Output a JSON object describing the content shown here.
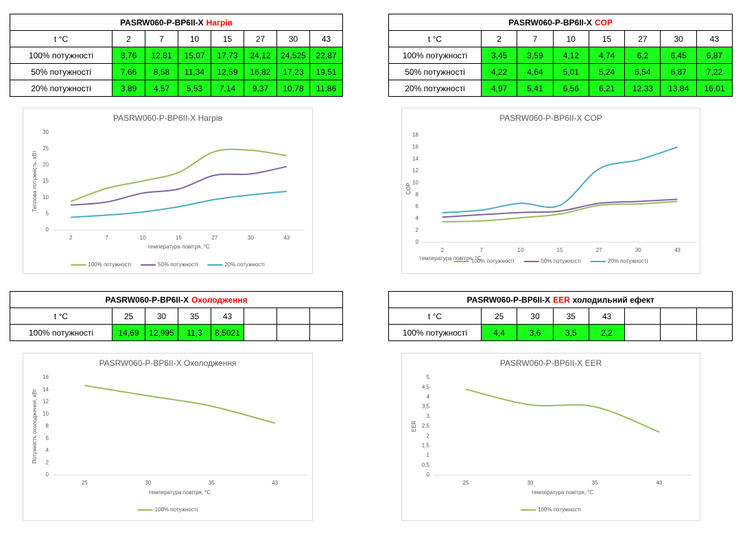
{
  "tables": [
    {
      "title": "PASRW060-P-BP6II-X",
      "title_highlight": "Нагрів",
      "header_label": "t °C",
      "headers": [
        "2",
        "7",
        "10",
        "15",
        "27",
        "30",
        "43"
      ],
      "rows": [
        {
          "label": "100% потужності",
          "values": [
            "8,76",
            "12,81",
            "15,07",
            "17,73",
            "24,12",
            "24,525",
            "22,87"
          ]
        },
        {
          "label": "50% потужності",
          "values": [
            "7,66",
            "8,58",
            "11,34",
            "12,59",
            "16,82",
            "17,23",
            "19,51"
          ]
        },
        {
          "label": "20% потужності",
          "values": [
            "3,89",
            "4,57",
            "5,53",
            "7,14",
            "9,37",
            "10,78",
            "11,86"
          ]
        }
      ]
    },
    {
      "title": "PASRW060-P-BP6II-X",
      "title_highlight": "COP",
      "header_label": "t °C",
      "headers": [
        "2",
        "7",
        "10",
        "15",
        "27",
        "30",
        "43"
      ],
      "rows": [
        {
          "label": "100% потужності",
          "values": [
            "3,45",
            "3,59",
            "4,12",
            "4,74",
            "6,2",
            "6,45",
            "6,87"
          ]
        },
        {
          "label": "50% потужності",
          "values": [
            "4,22",
            "4,64",
            "5,01",
            "5,24",
            "6,54",
            "6,87",
            "7,22"
          ]
        },
        {
          "label": "20% потужності",
          "values": [
            "4,97",
            "5,41",
            "6,56",
            "6,21",
            "12,33",
            "13,84",
            "16,01"
          ]
        }
      ]
    },
    {
      "title": "PASRW060-P-BP6II-X",
      "title_highlight": "Охолодження",
      "header_label": "t °C",
      "headers": [
        "25",
        "30",
        "35",
        "43"
      ],
      "rows": [
        {
          "label": "100% потужності",
          "values": [
            "14,69",
            "12,995",
            "11,3",
            "8,5021"
          ]
        }
      ]
    },
    {
      "title": "PASRW060-P-BP6II-X",
      "title_highlight": "EER",
      "title_suffix": "холодильний ефект",
      "header_label": "t °C",
      "headers": [
        "25",
        "30",
        "35",
        "43"
      ],
      "rows": [
        {
          "label": "100% потужності",
          "values": [
            "4,4",
            "3,6",
            "3,5",
            "2,2"
          ]
        }
      ]
    }
  ],
  "charts": [
    {
      "type": "line",
      "title": "PASRW060-P-BP6II-X Нагрів",
      "categories": [
        "2",
        "7",
        "10",
        "15",
        "27",
        "30",
        "43"
      ],
      "series": [
        {
          "name": "100% потужності",
          "color": "#9bbb59",
          "values": [
            8.76,
            12.81,
            15.07,
            17.73,
            24.12,
            24.525,
            22.87
          ]
        },
        {
          "name": "50% потужності",
          "color": "#8064a2",
          "values": [
            7.66,
            8.58,
            11.34,
            12.59,
            16.82,
            17.23,
            19.51
          ]
        },
        {
          "name": "20% потужності",
          "color": "#4bacc6",
          "values": [
            3.89,
            4.57,
            5.53,
            7.14,
            9.37,
            10.78,
            11.86
          ]
        }
      ],
      "ylim": [
        0,
        30
      ],
      "yticks": [
        0,
        5,
        10,
        15,
        20,
        25,
        30
      ],
      "xlabel": "температура повітря, °C",
      "ylabel": "Теплова потужність, кВт"
    },
    {
      "type": "line",
      "title": "PASRW060-P-BP6II-X COP",
      "categories": [
        "2",
        "7",
        "10",
        "15",
        "27",
        "30",
        "43"
      ],
      "series": [
        {
          "name": "100% потужності",
          "color": "#9bbb59",
          "values": [
            3.45,
            3.59,
            4.12,
            4.74,
            6.2,
            6.45,
            6.87
          ]
        },
        {
          "name": "50% потужності",
          "color": "#8064a2",
          "values": [
            4.22,
            4.64,
            5.01,
            5.24,
            6.54,
            6.87,
            7.22
          ]
        },
        {
          "name": "20% потужності",
          "color": "#4bacc6",
          "values": [
            4.97,
            5.41,
            6.56,
            6.21,
            12.33,
            13.84,
            16.01
          ]
        }
      ],
      "ylim": [
        0,
        18
      ],
      "yticks": [
        0,
        2,
        4,
        6,
        8,
        10,
        12,
        14,
        16,
        18
      ],
      "xlabel": "температура повітря, °C",
      "ylabel": "COP"
    },
    {
      "type": "line",
      "title": "PASRW060-P-BP6II-X Охолодження",
      "categories": [
        "25",
        "30",
        "35",
        "43"
      ],
      "series": [
        {
          "name": "100% потужності",
          "color": "#9bbb59",
          "values": [
            14.69,
            12.995,
            11.3,
            8.5021
          ]
        }
      ],
      "ylim": [
        0,
        16
      ],
      "yticks": [
        0,
        2,
        4,
        6,
        8,
        10,
        12,
        14,
        16
      ],
      "xlabel": "температура повітря, °C",
      "ylabel": "Потужність охолодження, кВт"
    },
    {
      "type": "line",
      "title": "PASRW060-P-BP6II-X EER",
      "categories": [
        "25",
        "30",
        "35",
        "43"
      ],
      "series": [
        {
          "name": "100% потужності",
          "color": "#9bbb59",
          "values": [
            4.4,
            3.6,
            3.5,
            2.2
          ]
        }
      ],
      "ylim": [
        0,
        5
      ],
      "yticks": [
        0,
        {
          "value": 0.5,
          "label": "0,5"
        },
        1,
        {
          "value": 1.5,
          "label": "1,5"
        },
        2,
        {
          "value": 2.5,
          "label": "2,5"
        },
        3,
        {
          "value": 3.5,
          "label": "3,5"
        },
        4,
        {
          "value": 4.5,
          "label": "4,5"
        },
        5
      ],
      "xlabel": "температура повітря, °C",
      "ylabel": "EER"
    }
  ]
}
